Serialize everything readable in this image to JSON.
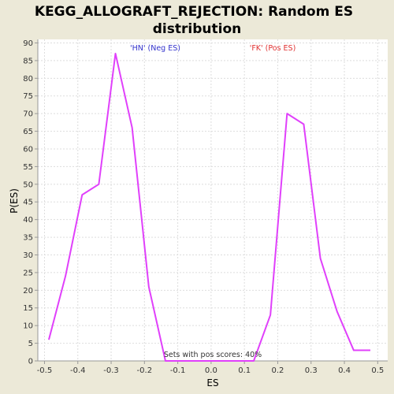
{
  "chart_data": {
    "type": "line",
    "title_line1": "KEGG_ALLOGRAFT_REJECTION: Random ES",
    "title_line2": "distribution",
    "xlabel": "ES",
    "ylabel": "P(ES)",
    "xlim": [
      -0.52,
      0.53
    ],
    "ylim": [
      0,
      91
    ],
    "x_ticks": [
      -0.5,
      -0.4,
      -0.3,
      -0.2,
      -0.1,
      0.0,
      0.1,
      0.2,
      0.3,
      0.4,
      0.5
    ],
    "x_tick_labels": [
      "-0.5",
      "-0.4",
      "-0.3",
      "-0.2",
      "-0.1",
      "0.0",
      "0.1",
      "0.2",
      "0.3",
      "0.4",
      "0.5"
    ],
    "y_ticks": [
      0,
      5,
      10,
      15,
      20,
      25,
      30,
      35,
      40,
      45,
      50,
      55,
      60,
      65,
      70,
      75,
      80,
      85,
      90
    ],
    "y_tick_labels": [
      "0",
      "5",
      "10",
      "15",
      "20",
      "25",
      "30",
      "35",
      "40",
      "45",
      "50",
      "55",
      "60",
      "65",
      "70",
      "75",
      "80",
      "85",
      "90"
    ],
    "grid": true,
    "series": [
      {
        "color": "#e040fb",
        "x": [
          -0.487,
          -0.437,
          -0.387,
          -0.337,
          -0.287,
          -0.237,
          -0.187,
          -0.137,
          -0.087,
          0.063,
          0.113,
          0.128,
          0.178,
          0.228,
          0.278,
          0.328,
          0.378,
          0.428,
          0.478
        ],
        "y": [
          6,
          24,
          47,
          50,
          87,
          66,
          21,
          0,
          0,
          0,
          0,
          0,
          13,
          70,
          67,
          29,
          14,
          3,
          3
        ]
      }
    ],
    "annotations": {
      "neg_label": "'HN' (Neg ES)",
      "neg_color": "#3333cc",
      "pos_label": "'FK' (Pos ES)",
      "pos_color": "#e03030",
      "pos_scores": "Sets with pos scores: 40%"
    },
    "colors": {
      "plot_bg": "#ffffff",
      "grid": "#dddddd",
      "axis": "#999999"
    }
  }
}
